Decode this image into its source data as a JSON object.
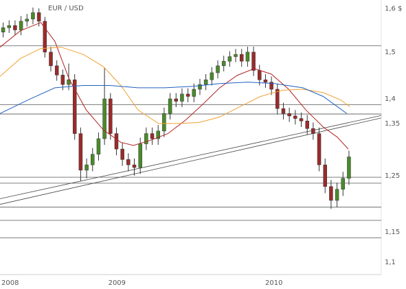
{
  "chart_data": {
    "type": "candlestick",
    "title": "EUR / USD",
    "log_scale": true,
    "ylim": [
      1.08,
      1.62
    ],
    "yticks": [
      {
        "value": 1.6,
        "label": "1,6 $"
      },
      {
        "value": 1.5,
        "label": "1,5"
      },
      {
        "value": 1.4,
        "label": "1,4"
      },
      {
        "value": 1.35,
        "label": "1,35"
      },
      {
        "value": 1.25,
        "label": "1,25"
      },
      {
        "value": 1.15,
        "label": "1,15"
      },
      {
        "value": 1.1,
        "label": "1,1"
      }
    ],
    "xlim": [
      2008.31,
      2010.74
    ],
    "xticks": [
      2008,
      2009,
      2010
    ],
    "up_color": "#4a8a2a",
    "down_color": "#9b2b2b",
    "candles": {
      "x": [
        2008.33,
        2008.368,
        2008.406,
        2008.444,
        2008.482,
        2008.52,
        2008.558,
        2008.596,
        2008.634,
        2008.672,
        2008.71,
        2008.748,
        2008.786,
        2008.824,
        2008.862,
        2008.9,
        2008.938,
        2008.976,
        2009.014,
        2009.052,
        2009.09,
        2009.128,
        2009.166,
        2009.204,
        2009.242,
        2009.28,
        2009.318,
        2009.356,
        2009.394,
        2009.432,
        2009.47,
        2009.508,
        2009.546,
        2009.584,
        2009.622,
        2009.66,
        2009.698,
        2009.736,
        2009.774,
        2009.812,
        2009.85,
        2009.888,
        2009.926,
        2009.964,
        2010.002,
        2010.04,
        2010.078,
        2010.116,
        2010.154,
        2010.192,
        2010.23,
        2010.268,
        2010.306,
        2010.344,
        2010.382,
        2010.42,
        2010.458,
        2010.496,
        2010.534
      ],
      "open": [
        1.545,
        1.555,
        1.56,
        1.55,
        1.57,
        1.575,
        1.59,
        1.57,
        1.5,
        1.47,
        1.45,
        1.43,
        1.44,
        1.33,
        1.26,
        1.27,
        1.29,
        1.32,
        1.4,
        1.33,
        1.3,
        1.28,
        1.27,
        1.265,
        1.31,
        1.33,
        1.32,
        1.335,
        1.37,
        1.4,
        1.395,
        1.41,
        1.405,
        1.42,
        1.43,
        1.44,
        1.455,
        1.47,
        1.48,
        1.49,
        1.495,
        1.48,
        1.5,
        1.46,
        1.44,
        1.435,
        1.42,
        1.38,
        1.37,
        1.365,
        1.36,
        1.355,
        1.34,
        1.33,
        1.27,
        1.23,
        1.205,
        1.225,
        1.245
      ],
      "high": [
        1.567,
        1.572,
        1.572,
        1.582,
        1.587,
        1.602,
        1.6,
        1.58,
        1.512,
        1.482,
        1.462,
        1.475,
        1.452,
        1.342,
        1.282,
        1.302,
        1.332,
        1.465,
        1.412,
        1.342,
        1.312,
        1.292,
        1.282,
        1.322,
        1.342,
        1.342,
        1.347,
        1.382,
        1.412,
        1.412,
        1.422,
        1.422,
        1.432,
        1.442,
        1.452,
        1.467,
        1.482,
        1.492,
        1.502,
        1.507,
        1.507,
        1.512,
        1.512,
        1.472,
        1.452,
        1.447,
        1.432,
        1.392,
        1.382,
        1.377,
        1.372,
        1.367,
        1.352,
        1.342,
        1.282,
        1.242,
        1.237,
        1.257,
        1.297
      ],
      "low": [
        1.533,
        1.543,
        1.538,
        1.538,
        1.558,
        1.563,
        1.558,
        1.488,
        1.458,
        1.438,
        1.418,
        1.418,
        1.318,
        1.24,
        1.245,
        1.258,
        1.278,
        1.308,
        1.318,
        1.288,
        1.268,
        1.258,
        1.25,
        1.253,
        1.298,
        1.308,
        1.308,
        1.323,
        1.358,
        1.383,
        1.383,
        1.393,
        1.393,
        1.408,
        1.418,
        1.428,
        1.443,
        1.458,
        1.468,
        1.478,
        1.468,
        1.468,
        1.448,
        1.428,
        1.423,
        1.408,
        1.368,
        1.358,
        1.353,
        1.348,
        1.343,
        1.328,
        1.318,
        1.258,
        1.218,
        1.19,
        1.193,
        1.213,
        1.233
      ],
      "close": [
        1.555,
        1.56,
        1.55,
        1.57,
        1.575,
        1.59,
        1.57,
        1.5,
        1.47,
        1.45,
        1.43,
        1.44,
        1.33,
        1.26,
        1.27,
        1.29,
        1.32,
        1.4,
        1.33,
        1.3,
        1.28,
        1.27,
        1.265,
        1.31,
        1.33,
        1.32,
        1.335,
        1.37,
        1.4,
        1.395,
        1.41,
        1.405,
        1.42,
        1.43,
        1.44,
        1.455,
        1.47,
        1.48,
        1.49,
        1.495,
        1.48,
        1.5,
        1.46,
        1.44,
        1.435,
        1.42,
        1.38,
        1.37,
        1.365,
        1.36,
        1.355,
        1.34,
        1.33,
        1.27,
        1.23,
        1.205,
        1.225,
        1.245,
        1.285
      ]
    },
    "lines": [
      {
        "color": "#b22222",
        "x": [
          2008.31,
          2008.44,
          2008.57,
          2008.66,
          2008.75,
          2008.86,
          2008.97,
          2009.08,
          2009.16,
          2009.27,
          2009.38,
          2009.49,
          2009.6,
          2009.71,
          2009.82,
          2009.93,
          2010.04,
          2010.15,
          2010.26,
          2010.37,
          2010.46,
          2010.53
        ],
        "values": [
          1.511,
          1.548,
          1.567,
          1.524,
          1.442,
          1.377,
          1.337,
          1.313,
          1.307,
          1.317,
          1.33,
          1.356,
          1.388,
          1.423,
          1.449,
          1.464,
          1.452,
          1.42,
          1.377,
          1.343,
          1.323,
          1.3
        ]
      },
      {
        "color": "#f0a030",
        "x": [
          2008.31,
          2008.44,
          2008.57,
          2008.7,
          2008.84,
          2008.97,
          2009.08,
          2009.19,
          2009.32,
          2009.45,
          2009.58,
          2009.71,
          2009.84,
          2009.97,
          2010.11,
          2010.24,
          2010.37,
          2010.48,
          2010.54
        ],
        "values": [
          1.447,
          1.486,
          1.508,
          1.511,
          1.495,
          1.468,
          1.428,
          1.377,
          1.35,
          1.35,
          1.352,
          1.363,
          1.384,
          1.405,
          1.418,
          1.42,
          1.413,
          1.398,
          1.384
        ]
      },
      {
        "color": "#2060c0",
        "x": [
          2008.31,
          2008.49,
          2008.66,
          2008.84,
          2009.01,
          2009.19,
          2009.36,
          2009.54,
          2009.71,
          2009.89,
          2010.06,
          2010.24,
          2010.37,
          2010.46,
          2010.52
        ],
        "values": [
          1.37,
          1.398,
          1.423,
          1.428,
          1.428,
          1.423,
          1.423,
          1.426,
          1.432,
          1.435,
          1.432,
          1.423,
          1.405,
          1.384,
          1.37
        ]
      }
    ],
    "levels": [
      1.514,
      1.388,
      1.369,
      1.247,
      1.236,
      1.193,
      1.17,
      1.14
    ],
    "trendlines": [
      {
        "x": [
          2008.31,
          2010.74
        ],
        "values": [
          1.208,
          1.366
        ]
      },
      {
        "x": [
          2008.31,
          2010.74
        ],
        "values": [
          1.198,
          1.361
        ]
      }
    ]
  }
}
